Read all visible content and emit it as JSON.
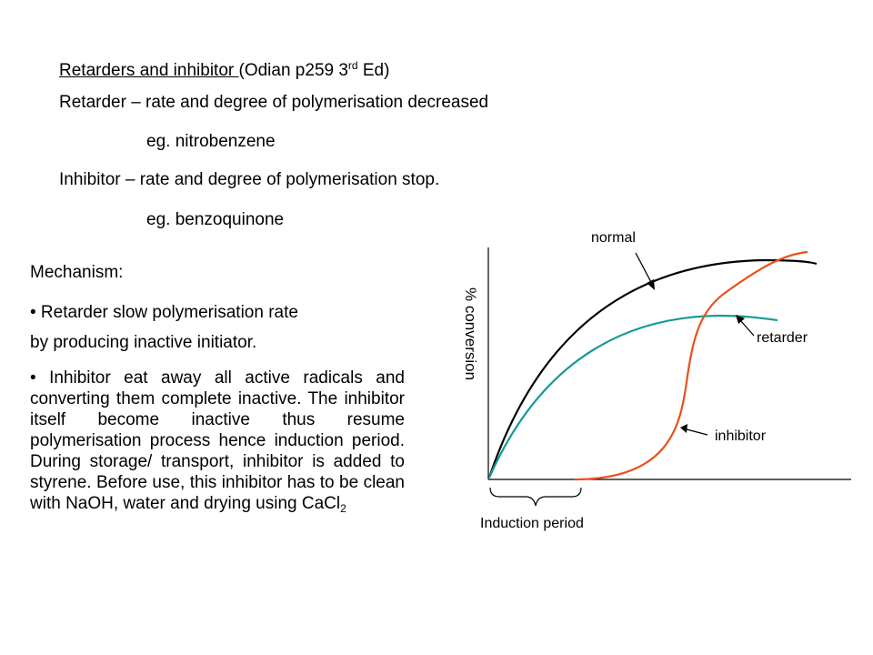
{
  "heading": {
    "underlined": "Retarders and inhibitor ",
    "ref": "(Odian p259 3",
    "ref_sup": "rd",
    "ref_tail": " Ed)"
  },
  "lines": {
    "retarder_def": "Retarder – rate and degree of polymerisation decreased",
    "retarder_eg": "eg. nitrobenzene",
    "inhibitor_def": "Inhibitor – rate and degree of polymerisation stop.",
    "inhibitor_eg": "eg. benzoquinone"
  },
  "mechanism": {
    "title": "Mechanism:",
    "bullet1_line1": "• Retarder slow polymerisation rate",
    "bullet1_line2": "by producing inactive initiator.",
    "bullet2_text": "• Inhibitor eat away all active radicals and converting them complete inactive. The inhibitor itself become inactive thus resume polymerisation process hence induction period. During storage/ transport, inhibitor is added to styrene. Before use, this inhibitor has to be clean with NaOH, water and drying using CaCl",
    "bullet2_sub": "2"
  },
  "diagram": {
    "y_axis_label": "% conversion",
    "labels": {
      "normal": "normal",
      "retarder": "retarder",
      "inhibitor": "inhibitor",
      "induction": "Induction period"
    },
    "colors": {
      "normal": "#000000",
      "retarder": "#129a9a",
      "inhibitor": "#e8501f",
      "axis": "#000000"
    }
  }
}
